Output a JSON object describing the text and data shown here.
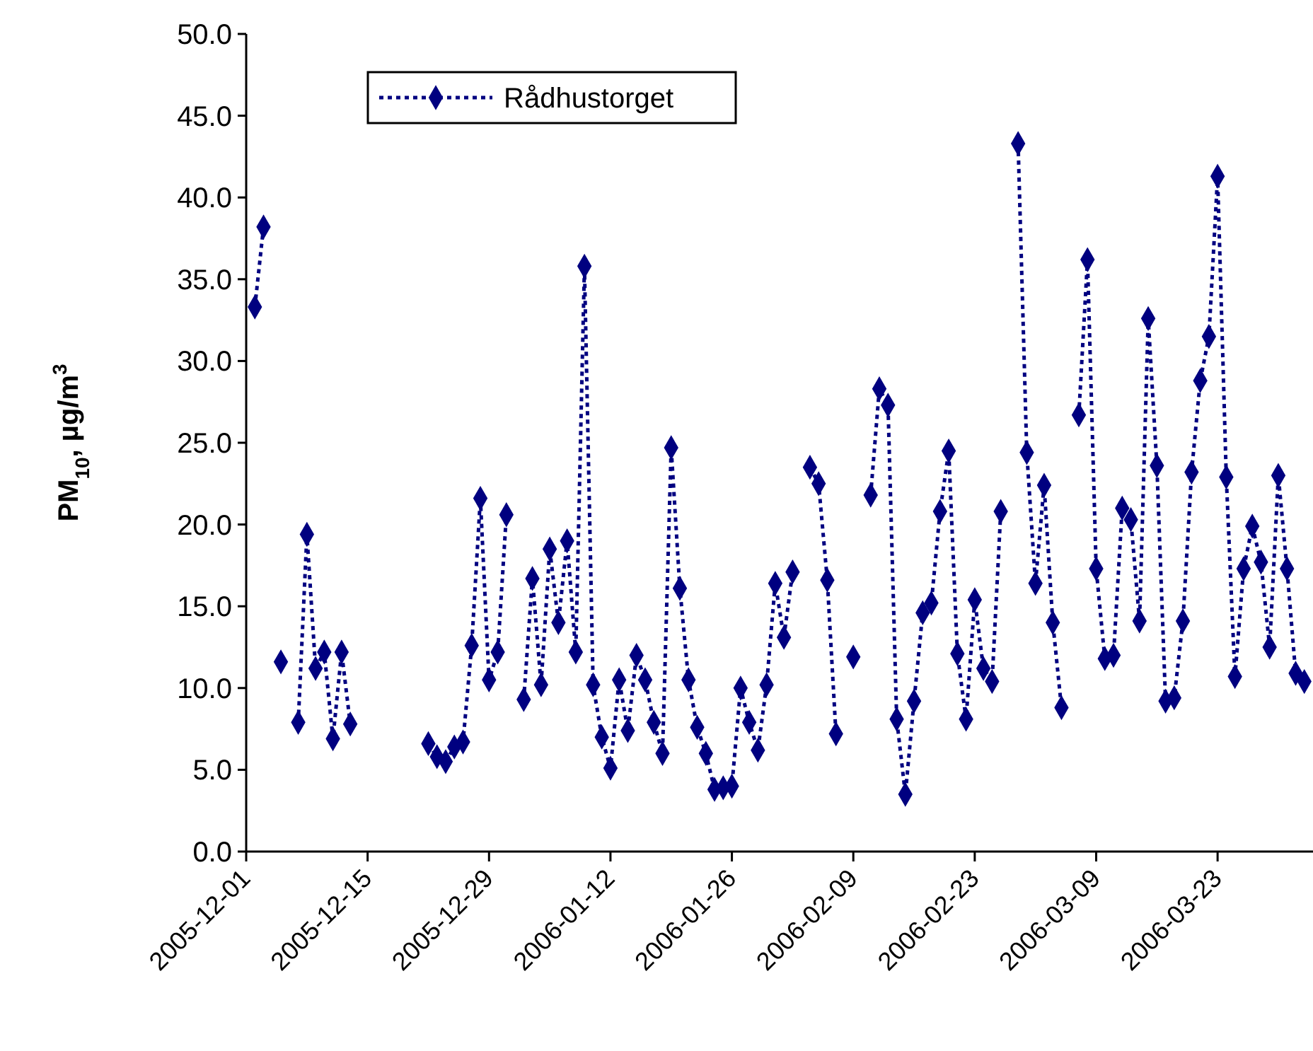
{
  "chart_data": {
    "type": "line",
    "ylabel": "PM$_{10}$, µg/m$^{3}$",
    "xlim": [
      "2005-12-01",
      "2006-04-03"
    ],
    "xticks": [
      {
        "value": "2005-12-01",
        "label": "2005-12-01"
      },
      {
        "value": "2005-12-15",
        "label": "2005-12-15"
      },
      {
        "value": "2005-12-29",
        "label": "2005-12-29"
      },
      {
        "value": "2006-01-12",
        "label": "2006-01-12"
      },
      {
        "value": "2006-01-26",
        "label": "2006-01-26"
      },
      {
        "value": "2006-02-09",
        "label": "2006-02-09"
      },
      {
        "value": "2006-02-23",
        "label": "2006-02-23"
      },
      {
        "value": "2006-03-09",
        "label": "2006-03-09"
      },
      {
        "value": "2006-03-23",
        "label": "2006-03-23"
      }
    ],
    "ylim": [
      0,
      50
    ],
    "yticks": [
      {
        "value": 0,
        "label": "0.0"
      },
      {
        "value": 5,
        "label": "5.0"
      },
      {
        "value": 10,
        "label": "10.0"
      },
      {
        "value": 15,
        "label": "15.0"
      },
      {
        "value": 20,
        "label": "20.0"
      },
      {
        "value": 25,
        "label": "25.0"
      },
      {
        "value": 30,
        "label": "30.0"
      },
      {
        "value": 35,
        "label": "35.0"
      },
      {
        "value": 40,
        "label": "40.0"
      },
      {
        "value": 45,
        "label": "45.0"
      },
      {
        "value": 50,
        "label": "50.0"
      }
    ],
    "grid": false,
    "legend": "top left",
    "marker": "diamond",
    "line_style": "dotted",
    "x": [
      "2005-12-02",
      "2005-12-03",
      "2005-12-04",
      "2005-12-05",
      "2005-12-06",
      "2005-12-07",
      "2005-12-08",
      "2005-12-09",
      "2005-12-10",
      "2005-12-11",
      "2005-12-12",
      "2005-12-13",
      "2005-12-14",
      "2005-12-22",
      "2005-12-23",
      "2005-12-24",
      "2005-12-25",
      "2005-12-26",
      "2005-12-27",
      "2005-12-28",
      "2005-12-29",
      "2005-12-30",
      "2005-12-31",
      "2006-01-01",
      "2006-01-02",
      "2006-01-03",
      "2006-01-04",
      "2006-01-05",
      "2006-01-06",
      "2006-01-07",
      "2006-01-08",
      "2006-01-09",
      "2006-01-10",
      "2006-01-11",
      "2006-01-12",
      "2006-01-13",
      "2006-01-14",
      "2006-01-15",
      "2006-01-16",
      "2006-01-17",
      "2006-01-18",
      "2006-01-19",
      "2006-01-20",
      "2006-01-21",
      "2006-01-22",
      "2006-01-23",
      "2006-01-24",
      "2006-01-25",
      "2006-01-26",
      "2006-01-27",
      "2006-01-28",
      "2006-01-29",
      "2006-01-30",
      "2006-01-31",
      "2006-02-01",
      "2006-02-02",
      "2006-02-03",
      "2006-02-04",
      "2006-02-05",
      "2006-02-06",
      "2006-02-07",
      "2006-02-08",
      "2006-02-09",
      "2006-02-10",
      "2006-02-11",
      "2006-02-12",
      "2006-02-13",
      "2006-02-14",
      "2006-02-15",
      "2006-02-16",
      "2006-02-17",
      "2006-02-18",
      "2006-02-19",
      "2006-02-20",
      "2006-02-21",
      "2006-02-22",
      "2006-02-23",
      "2006-02-24",
      "2006-02-25",
      "2006-02-26",
      "2006-02-27",
      "2006-02-28",
      "2006-03-01",
      "2006-03-02",
      "2006-03-03",
      "2006-03-04",
      "2006-03-05",
      "2006-03-06",
      "2006-03-07",
      "2006-03-08",
      "2006-03-09",
      "2006-03-10",
      "2006-03-11",
      "2006-03-12",
      "2006-03-13",
      "2006-03-14",
      "2006-03-15",
      "2006-03-16",
      "2006-03-17",
      "2006-03-18",
      "2006-03-19",
      "2006-03-20",
      "2006-03-21",
      "2006-03-22",
      "2006-03-23",
      "2006-03-24",
      "2006-03-25",
      "2006-03-26",
      "2006-03-27",
      "2006-03-28",
      "2006-03-29",
      "2006-03-30",
      "2006-03-31",
      "2006-04-01",
      "2006-04-02"
    ],
    "series": [
      {
        "name": "Rådhustorget",
        "color": "#000080",
        "values": [
          33.3,
          38.2,
          null,
          11.6,
          null,
          7.9,
          19.4,
          11.2,
          12.2,
          6.9,
          12.2,
          7.8,
          null,
          6.6,
          5.8,
          5.5,
          6.4,
          6.7,
          12.6,
          21.6,
          10.5,
          12.2,
          20.6,
          null,
          9.3,
          16.7,
          10.2,
          18.5,
          14.0,
          19.0,
          12.2,
          35.8,
          10.2,
          7.0,
          5.1,
          10.5,
          7.4,
          12.0,
          10.5,
          7.9,
          6.0,
          24.7,
          16.1,
          10.5,
          7.6,
          6.0,
          3.8,
          3.9,
          4.0,
          10.0,
          7.9,
          6.2,
          10.2,
          16.4,
          13.1,
          17.1,
          null,
          23.5,
          22.5,
          16.6,
          7.2,
          null,
          11.9,
          null,
          21.8,
          28.3,
          27.3,
          8.1,
          3.5,
          9.2,
          14.6,
          15.2,
          20.8,
          24.5,
          12.1,
          8.1,
          15.4,
          11.2,
          10.4,
          20.8,
          null,
          43.3,
          24.4,
          16.4,
          22.4,
          14.0,
          8.8,
          null,
          26.7,
          36.2,
          17.3,
          11.8,
          12.0,
          21.0,
          20.3,
          14.1,
          32.6,
          23.6,
          9.2,
          9.4,
          14.1,
          23.2,
          28.8,
          31.5,
          41.3,
          22.9,
          10.7,
          17.3,
          19.9,
          17.7,
          12.5,
          23.0,
          17.3,
          10.9,
          10.4
        ]
      }
    ]
  }
}
